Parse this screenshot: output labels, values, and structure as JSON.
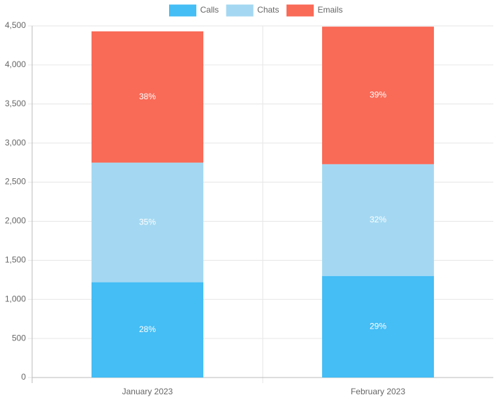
{
  "chart_data": {
    "type": "stacked_bar",
    "categories": [
      "January 2023",
      "February 2023"
    ],
    "series": [
      {
        "name": "Calls",
        "color": "#45bdf5",
        "values": [
          1220,
          1300
        ],
        "value_labels": [
          "28%",
          "29%"
        ]
      },
      {
        "name": "Chats",
        "color": "#a4d8f2",
        "values": [
          1530,
          1430
        ],
        "value_labels": [
          "35%",
          "32%"
        ]
      },
      {
        "name": "Emails",
        "color": "#f96a57",
        "values": [
          1680,
          1760
        ],
        "value_labels": [
          "38%",
          "39%"
        ]
      }
    ],
    "ylim": [
      0,
      4500
    ],
    "yticks": [
      0,
      500,
      {
        "value": 1000,
        "label": "1,000"
      },
      {
        "value": 1500,
        "label": "1,500"
      },
      {
        "value": 2000,
        "label": "2,000"
      },
      {
        "value": 2500,
        "label": "2,500"
      },
      {
        "value": 3000,
        "label": "3,000"
      },
      {
        "value": 3500,
        "label": "3,500"
      },
      {
        "value": 4000,
        "label": "4,000"
      },
      {
        "value": 4500,
        "label": "4,500"
      }
    ],
    "grid": true,
    "legend": "top"
  }
}
